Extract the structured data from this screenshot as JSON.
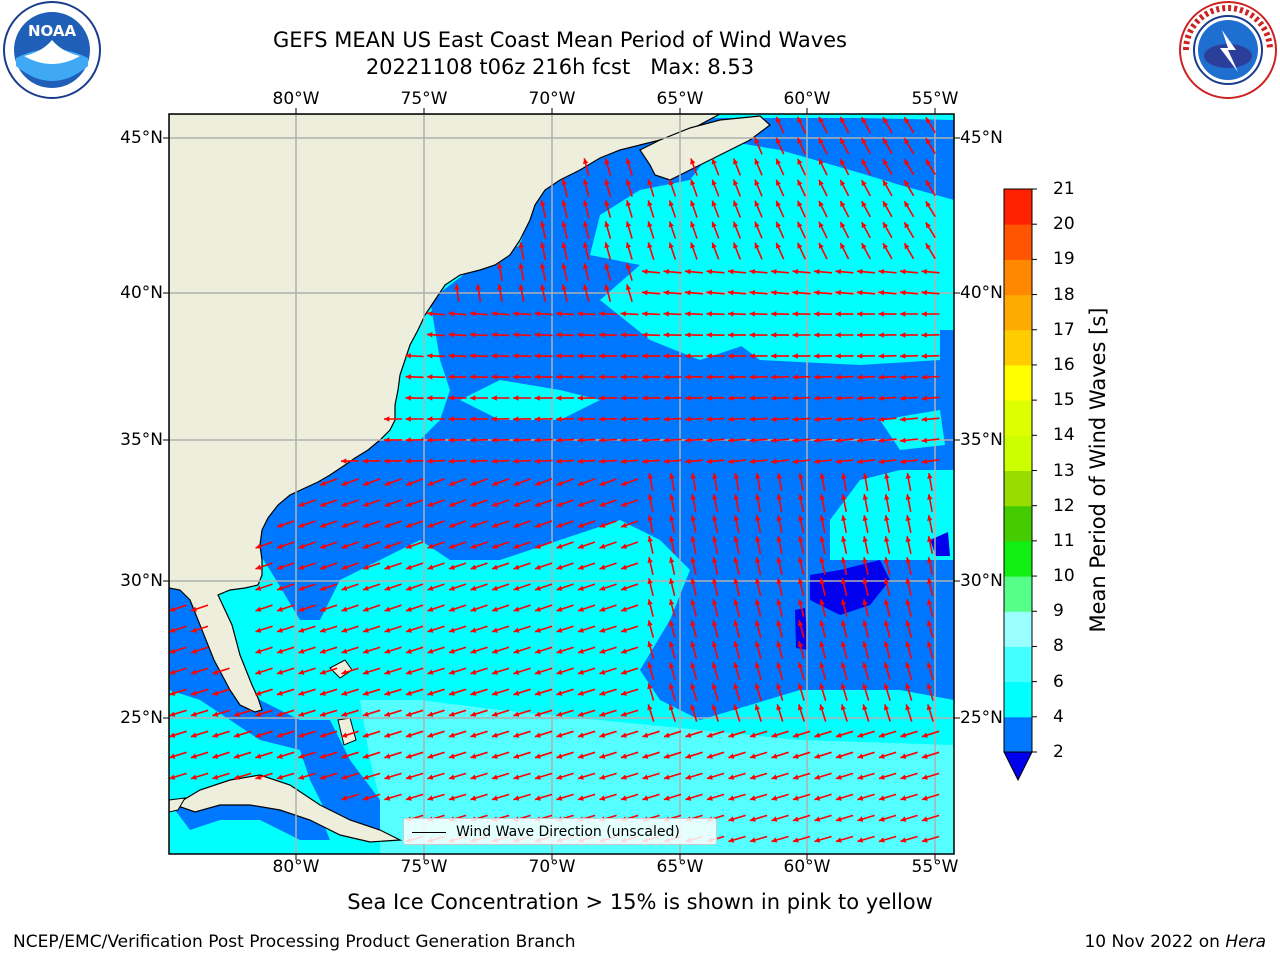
{
  "header": {
    "title": "GEFS MEAN US East Coast Mean Period of Wind Waves",
    "subtitle": "20221108 t06z 216h fcst   Max: 8.53"
  },
  "logos": {
    "left": "NOAA",
    "left_ring_text": "NATIONAL OCEANIC AND ATMOSPHERIC ADMINISTRATION · U.S. DEPARTMENT OF COMMERCE",
    "right_ring_text": "NATIONAL WEATHER SERVICE"
  },
  "map": {
    "lon_ticks": [
      "80°W",
      "75°W",
      "70°W",
      "65°W",
      "60°W",
      "55°W"
    ],
    "lat_ticks": [
      "45°N",
      "40°N",
      "35°N",
      "30°N",
      "25°N"
    ],
    "lon_range": [
      -85,
      -54.5
    ],
    "lat_range": [
      20.5,
      46
    ],
    "legend_label": "Wind Wave Direction (unscaled)",
    "colors": {
      "land": "#eeeedd",
      "grid": "#b0b0b0",
      "arrow": "#ff0000"
    }
  },
  "colorbar": {
    "title": "Mean Period of Wind Waves [s]",
    "tick_labels": [
      "2",
      "4",
      "6",
      "8",
      "9",
      "10",
      "11",
      "12",
      "13",
      "14",
      "15",
      "16",
      "17",
      "18",
      "19",
      "20",
      "21"
    ],
    "colors": [
      "#0077ff",
      "#00ffff",
      "#44ffff",
      "#99ffff",
      "#55ff88",
      "#11ee11",
      "#44cc00",
      "#99dd00",
      "#ccff00",
      "#ddff00",
      "#ffff00",
      "#ffcc00",
      "#ffaa00",
      "#ff8800",
      "#ff5500",
      "#ff2200",
      "#ff0000"
    ],
    "extend_color": "#0000ee"
  },
  "note": "Sea Ice Concentration > 15% is shown in pink to yellow",
  "footer": {
    "left": "NCEP/EMC/Verification Post Processing Product Generation Branch",
    "date": "10 Nov 2022 on",
    "host": "Hera"
  }
}
